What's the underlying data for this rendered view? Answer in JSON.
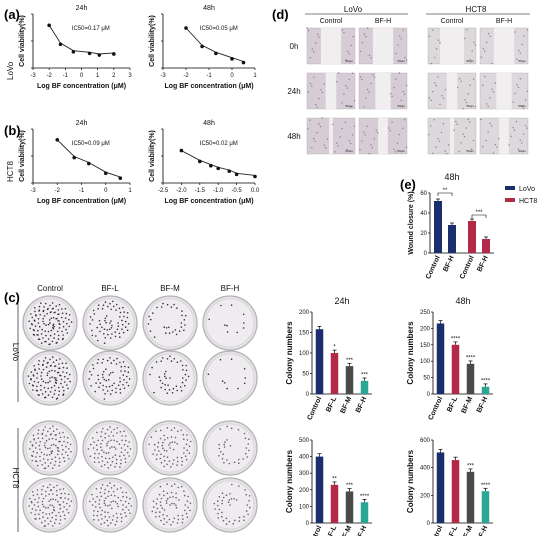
{
  "panel_labels": {
    "a": "(a)",
    "b": "(b)",
    "c": "(c)",
    "d": "(d)",
    "e": "(e)"
  },
  "row_labels": {
    "lovo": "LoVo",
    "hct8": "HCT8"
  },
  "chart_data": [
    {
      "id": "a24",
      "type": "scatter",
      "title": "24h",
      "xlabel": "Log BF concentration (μM)",
      "ylabel": "Cell viability(%)",
      "xlim": [
        -3,
        3
      ],
      "xticks": [
        "-3",
        "-2",
        "-1",
        "0",
        "1",
        "2",
        "3"
      ],
      "annotation": "IC50=0.17 μM",
      "x": [
        -2,
        -1.3,
        -0.5,
        0.5,
        1.1,
        2
      ],
      "y": [
        79,
        44,
        30,
        27,
        24,
        26
      ],
      "fit": true
    },
    {
      "id": "a48",
      "type": "scatter",
      "title": "48h",
      "xlabel": "Log BF concentration (μM)",
      "ylabel": "Cell viability(%)",
      "xlim": [
        -3,
        1
      ],
      "xticks": [
        "-3",
        "-2",
        "-1",
        "0",
        "1"
      ],
      "annotation": "IC50=0.05 μM",
      "x": [
        -2,
        -1.3,
        -0.7,
        0,
        0.5
      ],
      "y": [
        74,
        40,
        27,
        17,
        10
      ],
      "fit": true
    },
    {
      "id": "b24",
      "type": "scatter",
      "title": "24h",
      "xlabel": "Log BF concentration (μM)",
      "ylabel": "Cell viability(%)",
      "xlim": [
        -3,
        1
      ],
      "xticks": [
        "-3",
        "-2",
        "-1",
        "0",
        "1"
      ],
      "annotation": "IC50=0.09 μM",
      "x": [
        -2,
        -1.3,
        -0.7,
        0,
        0.6
      ],
      "y": [
        80,
        47,
        36,
        18,
        9
      ],
      "fit": true
    },
    {
      "id": "b48",
      "type": "scatter",
      "title": "48h",
      "xlabel": "Log BF concentration (μM)",
      "ylabel": "Cell viability(%)",
      "xlim": [
        -2.5,
        0
      ],
      "xticks": [
        "-2.5",
        "-2.0",
        "-1.5",
        "-1.0",
        "-0.5",
        "0.0"
      ],
      "annotation": "IC50=0.02 μM",
      "x": [
        -2,
        -1.5,
        -1.2,
        -1,
        -0.7,
        -0.5,
        0
      ],
      "y": [
        60,
        40,
        32,
        27,
        22,
        16,
        12
      ],
      "fit": true
    },
    {
      "id": "e",
      "type": "bar",
      "title": "48h",
      "ylabel": "Wound closure (%)",
      "ylim": [
        0,
        60
      ],
      "yticks": [
        "0",
        "20",
        "40",
        "60"
      ],
      "categories": [
        "Control",
        "BF-H",
        "Control",
        "BF-H"
      ],
      "values": [
        52,
        28,
        32,
        14
      ],
      "colors": [
        "#1b2f6e",
        "#1b2f6e",
        "#b22a48",
        "#b22a48"
      ],
      "legend": [
        "LoVo",
        "HCT8"
      ],
      "significance": [
        "**",
        "***"
      ]
    },
    {
      "id": "c_lovo_24",
      "type": "bar",
      "title": "24h",
      "ylabel": "Colony numbers",
      "ylim": [
        0,
        200
      ],
      "yticks": [
        "0",
        "50",
        "100",
        "150",
        "200"
      ],
      "categories": [
        "Control",
        "BF-L",
        "BF-M",
        "BF-H"
      ],
      "values": [
        158,
        100,
        68,
        32
      ],
      "stars": [
        "",
        "*",
        "***",
        "***"
      ]
    },
    {
      "id": "c_lovo_48",
      "type": "bar",
      "title": "48h",
      "ylabel": "Colony numbers",
      "ylim": [
        0,
        250
      ],
      "yticks": [
        "0",
        "50",
        "100",
        "150",
        "200",
        "250"
      ],
      "categories": [
        "Control",
        "BF-L",
        "BF-M",
        "BF-H"
      ],
      "values": [
        215,
        150,
        92,
        22
      ],
      "stars": [
        "",
        "****",
        "****",
        "****"
      ]
    },
    {
      "id": "c_hct8_24",
      "type": "bar",
      "title": "",
      "ylabel": "Colony numbers",
      "ylim": [
        0,
        500
      ],
      "yticks": [
        "0",
        "100",
        "200",
        "300",
        "400",
        "500"
      ],
      "categories": [
        "Control",
        "BF-L",
        "BF-M",
        "BF-H"
      ],
      "values": [
        400,
        230,
        190,
        125
      ],
      "stars": [
        "",
        "**",
        "***",
        "****"
      ]
    },
    {
      "id": "c_hct8_48",
      "type": "bar",
      "title": "",
      "ylabel": "Colony numbers",
      "ylim": [
        0,
        600
      ],
      "yticks": [
        "0",
        "200",
        "400",
        "600"
      ],
      "categories": [
        "Control",
        "BF-L",
        "BF-M",
        "BF-H"
      ],
      "values": [
        510,
        455,
        370,
        230
      ],
      "stars": [
        "",
        "",
        "***",
        "****"
      ]
    }
  ],
  "panel_c": {
    "columns": [
      "Control",
      "BF-L",
      "BF-M",
      "BF-H"
    ],
    "times": [
      "24h",
      "48h"
    ],
    "density": [
      [
        0.95,
        0.55,
        0.25,
        0.08
      ],
      [
        0.9,
        0.55,
        0.35,
        0.08
      ],
      [
        0.85,
        0.7,
        0.55,
        0.25
      ],
      [
        0.8,
        0.7,
        0.55,
        0.35
      ]
    ]
  },
  "panel_d": {
    "groups": [
      "LoVo",
      "HCT8"
    ],
    "columns": [
      "Control",
      "BF-H",
      "Control",
      "BF-H"
    ],
    "times": [
      "0h",
      "24h",
      "48h"
    ],
    "scale": "50μm"
  },
  "colors": {
    "lovo": "#1b2f6e",
    "hct8": "#b22a48",
    "grey": "#4a4a4a",
    "teal": "#2aa596"
  }
}
